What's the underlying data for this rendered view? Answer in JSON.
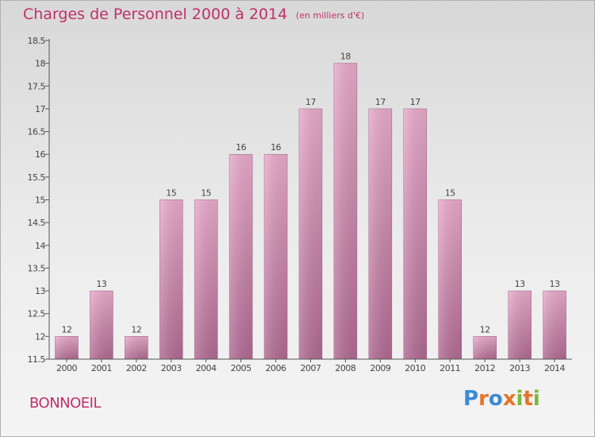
{
  "header": {
    "title": "Charges de Personnel 2000 à 2014",
    "subtitle": "(en milliers d'€)"
  },
  "footer": {
    "commune": "BONNOEIL",
    "logo": "Proxiti",
    "logo_letters": [
      {
        "ch": "P",
        "color": "#3a8ad6"
      },
      {
        "ch": "r",
        "color": "#e8742a"
      },
      {
        "ch": "o",
        "color": "#3a8ad6"
      },
      {
        "ch": "x",
        "color": "#e8742a"
      },
      {
        "ch": "i",
        "color": "#7ab83a"
      },
      {
        "ch": "t",
        "color": "#e8742a"
      },
      {
        "ch": "i",
        "color": "#7ab83a"
      }
    ]
  },
  "colors": {
    "title": "#c0306a",
    "bar_top": "#e8aacb",
    "bar_bottom": "#b06a92",
    "axis": "#555555"
  },
  "chart_data": {
    "type": "bar",
    "categories": [
      "2000",
      "2001",
      "2002",
      "2003",
      "2004",
      "2005",
      "2006",
      "2007",
      "2008",
      "2009",
      "2010",
      "2011",
      "2012",
      "2013",
      "2014"
    ],
    "values": [
      12,
      13,
      12,
      15,
      15,
      16,
      16,
      17,
      18,
      17,
      17,
      15,
      12,
      13,
      13
    ],
    "labels": [
      "12",
      "13",
      "12",
      "15",
      "15",
      "16",
      "16",
      "17",
      "18",
      "17",
      "17",
      "15",
      "12",
      "13",
      "13"
    ],
    "ylim": [
      11.5,
      18.5
    ],
    "yticks": [
      11.5,
      12,
      12.5,
      13,
      13.5,
      14,
      14.5,
      15,
      15.5,
      16,
      16.5,
      17,
      17.5,
      18,
      18.5
    ],
    "ytick_labels": [
      "11.5",
      "12",
      "12.5",
      "13",
      "13.5",
      "14",
      "14.5",
      "15",
      "15.5",
      "16",
      "16.5",
      "17",
      "17.5",
      "18",
      "18.5"
    ],
    "grid": false,
    "legend": "none"
  }
}
